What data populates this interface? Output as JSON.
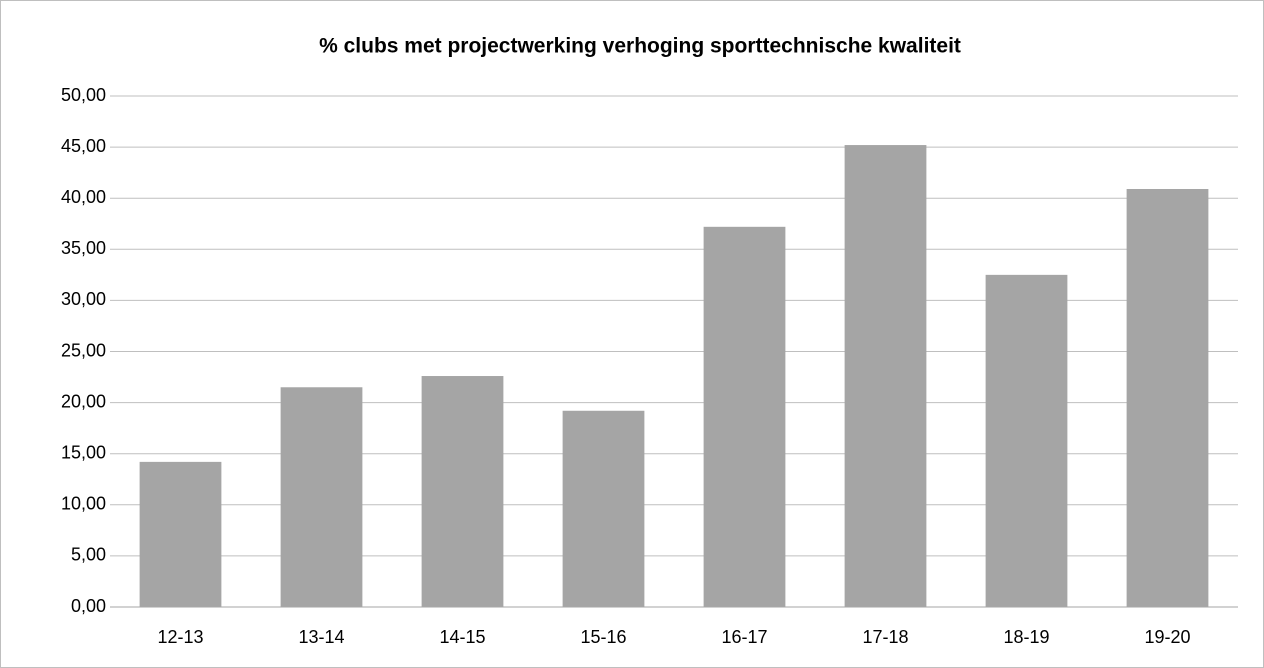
{
  "chart_data": {
    "type": "bar",
    "title": "% clubs met projectwerking verhoging sporttechnische kwaliteit",
    "categories": [
      "12-13",
      "13-14",
      "14-15",
      "15-16",
      "16-17",
      "17-18",
      "18-19",
      "19-20"
    ],
    "values": [
      14.2,
      21.5,
      22.6,
      19.2,
      37.2,
      45.2,
      32.5,
      40.9
    ],
    "color": "#a5a5a5",
    "ylim": [
      0,
      50
    ],
    "yticks": [
      {
        "value": 0,
        "label": "0,00"
      },
      {
        "value": 5,
        "label": "5,00"
      },
      {
        "value": 10,
        "label": "10,00"
      },
      {
        "value": 15,
        "label": "15,00"
      },
      {
        "value": 20,
        "label": "20,00"
      },
      {
        "value": 25,
        "label": "25,00"
      },
      {
        "value": 30,
        "label": "30,00"
      },
      {
        "value": 35,
        "label": "35,00"
      },
      {
        "value": 40,
        "label": "40,00"
      },
      {
        "value": 45,
        "label": "45,00"
      },
      {
        "value": 50,
        "label": "50,00"
      }
    ],
    "grid": true
  }
}
